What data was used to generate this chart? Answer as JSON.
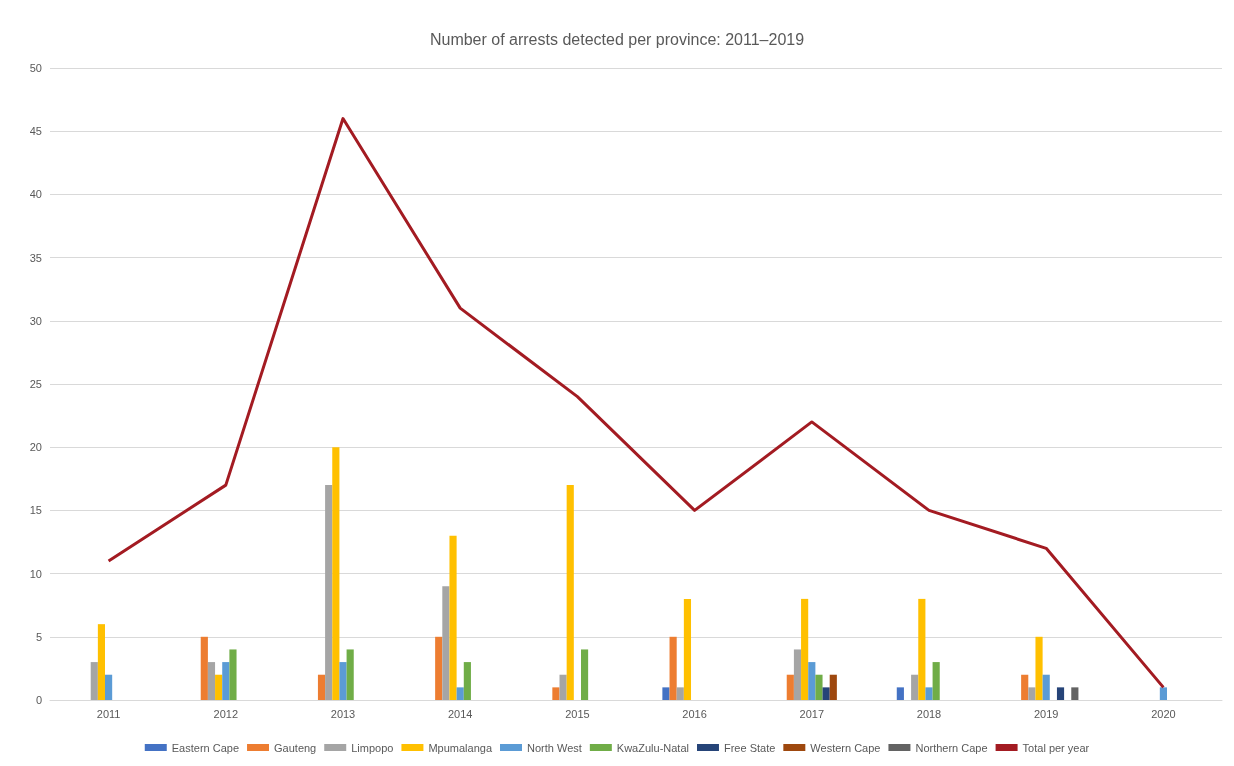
{
  "chart_data": {
    "type": "bar",
    "title": "Number of arrests detected per province: 2011–2019",
    "categories": [
      "2011",
      "2012",
      "2013",
      "2014",
      "2015",
      "2016",
      "2017",
      "2018",
      "2019",
      "2020"
    ],
    "series": [
      {
        "name": "Eastern Cape",
        "color": "#4472c4",
        "values": [
          null,
          null,
          null,
          null,
          null,
          1,
          null,
          1,
          null,
          null
        ]
      },
      {
        "name": "Gauteng",
        "color": "#ed7d31",
        "values": [
          null,
          5,
          2,
          5,
          1,
          5,
          2,
          null,
          2,
          null
        ]
      },
      {
        "name": "Limpopo",
        "color": "#a5a5a5",
        "values": [
          3,
          3,
          17,
          9,
          2,
          1,
          4,
          2,
          1,
          null
        ]
      },
      {
        "name": "Mpumalanga",
        "color": "#ffc000",
        "values": [
          6,
          2,
          20,
          13,
          17,
          8,
          8,
          8,
          5,
          null
        ]
      },
      {
        "name": "North West",
        "color": "#5b9bd5",
        "values": [
          2,
          3,
          3,
          1,
          null,
          null,
          3,
          1,
          2,
          1
        ]
      },
      {
        "name": "KwaZulu-Natal",
        "color": "#70ad47",
        "values": [
          null,
          4,
          4,
          3,
          4,
          null,
          2,
          3,
          null,
          null
        ]
      },
      {
        "name": "Free State",
        "color": "#264478",
        "values": [
          null,
          null,
          null,
          null,
          null,
          null,
          1,
          null,
          1,
          null
        ]
      },
      {
        "name": "Western Cape",
        "color": "#9e480e",
        "values": [
          null,
          null,
          null,
          null,
          null,
          null,
          2,
          null,
          null,
          null
        ]
      },
      {
        "name": "Northern Cape",
        "color": "#636363",
        "values": [
          null,
          null,
          null,
          null,
          null,
          null,
          null,
          null,
          1,
          null
        ]
      },
      {
        "name": "Total per year",
        "type": "line",
        "color": "#a31b22",
        "marker": "none",
        "values": [
          11,
          17,
          46,
          31,
          24,
          15,
          22,
          15,
          12,
          1
        ]
      }
    ],
    "ylim": [
      0,
      50
    ],
    "yticks": [
      0,
      5,
      10,
      15,
      20,
      25,
      30,
      35,
      40,
      45,
      50
    ],
    "grid": "y",
    "legend": "bottom"
  }
}
